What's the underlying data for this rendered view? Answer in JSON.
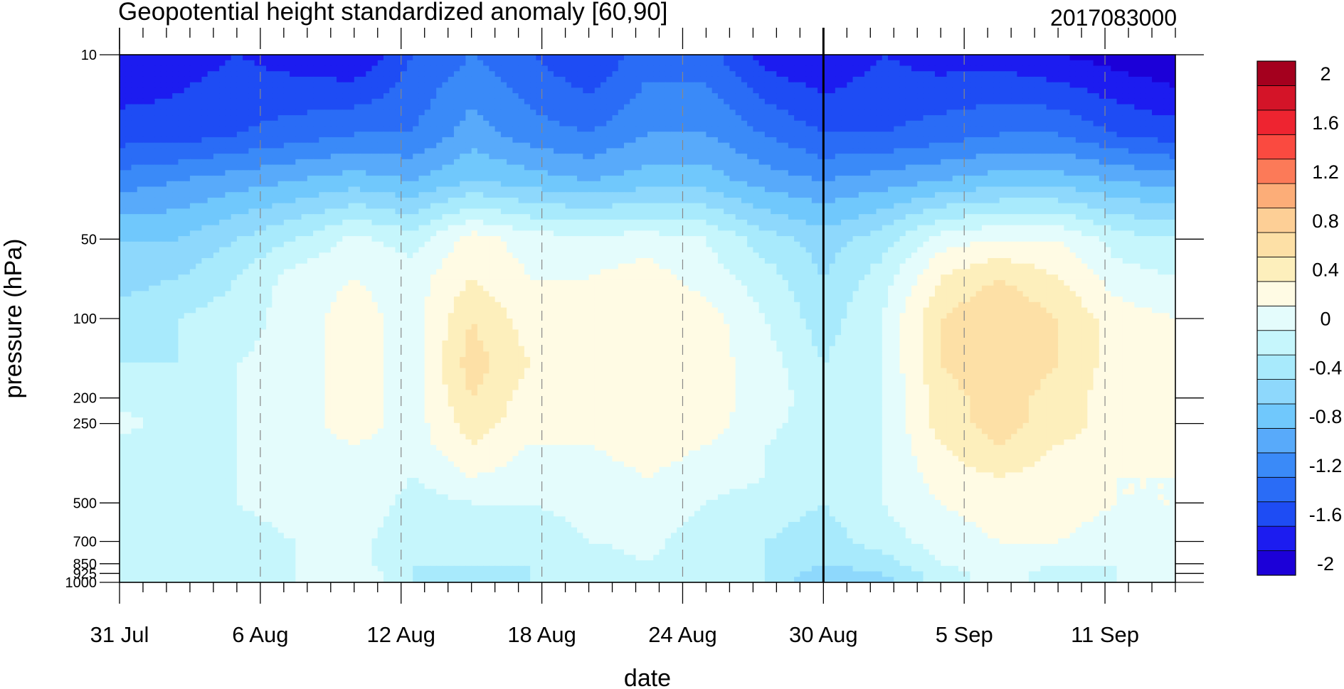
{
  "chart_data": {
    "type": "heatmap",
    "title": "Geopotential height standardized anomaly [60,90]",
    "run_label": "2017083000",
    "xlabel": "date",
    "ylabel": "pressure (hPa)",
    "x_ticks": [
      {
        "day": 0,
        "label": "31 Jul"
      },
      {
        "day": 6,
        "label": "6 Aug"
      },
      {
        "day": 12,
        "label": "12 Aug"
      },
      {
        "day": 18,
        "label": "18 Aug"
      },
      {
        "day": 24,
        "label": "24 Aug"
      },
      {
        "day": 30,
        "label": "30 Aug"
      },
      {
        "day": 36,
        "label": "5 Sep"
      },
      {
        "day": 42,
        "label": "11 Sep"
      }
    ],
    "x_range_days": [
      0,
      45
    ],
    "init_marker_day": 30,
    "y_scale": "log",
    "y_range_hpa": [
      1000,
      10
    ],
    "y_ticks": [
      {
        "p": 10,
        "label": "10"
      },
      {
        "p": 50,
        "label": "50"
      },
      {
        "p": 100,
        "label": "100"
      },
      {
        "p": 200,
        "label": "200"
      },
      {
        "p": 250,
        "label": "250"
      },
      {
        "p": 500,
        "label": "500"
      },
      {
        "p": 700,
        "label": "700"
      },
      {
        "p": 850,
        "label": "850"
      },
      {
        "p": 925,
        "label": "925"
      },
      {
        "p": 1000,
        "label": "1000"
      }
    ],
    "colorbar": {
      "levels": [
        -2,
        -1.8,
        -1.6,
        -1.4,
        -1.2,
        -1.0,
        -0.8,
        -0.6,
        -0.4,
        -0.2,
        0,
        0.2,
        0.4,
        0.6,
        0.8,
        1.0,
        1.2,
        1.4,
        1.6,
        1.8,
        2
      ],
      "labels": [
        "2",
        "1.6",
        "1.2",
        "0.8",
        "0.4",
        "0",
        "-0.4",
        "-0.8",
        "-1.2",
        "-1.6",
        "-2"
      ],
      "colors": [
        "#1c00d8",
        "#1c1cf0",
        "#1e4cf4",
        "#2a6cf6",
        "#3a8af8",
        "#58aafa",
        "#70c8fc",
        "#8ed8fc",
        "#a8eafc",
        "#c6f6fc",
        "#e4fcfc",
        "#fffbe4",
        "#fdefbc",
        "#fde0a6",
        "#fdcf96",
        "#fcad78",
        "#fc7a58",
        "#fa4a40",
        "#ee2430",
        "#d41428",
        "#a4001e"
      ]
    },
    "pressure_levels_hpa": [
      10,
      20,
      30,
      50,
      70,
      100,
      150,
      200,
      250,
      300,
      400,
      500,
      700,
      850,
      925,
      1000
    ],
    "day_samples": [
      0,
      2.5,
      5,
      7.5,
      10,
      12.5,
      15,
      17.5,
      20,
      22.5,
      25,
      27.5,
      30,
      32.5,
      35,
      37.5,
      40,
      42.5,
      45
    ],
    "anomaly_grid": [
      [
        -1.8,
        -1.7,
        -1.6,
        -1.7,
        -1.8,
        -1.4,
        -1.2,
        -1.4,
        -1.6,
        -1.3,
        -1.3,
        -1.7,
        -1.8,
        -1.6,
        -1.7,
        -1.7,
        -1.8,
        -1.9,
        -2.0
      ],
      [
        -1.5,
        -1.5,
        -1.4,
        -1.3,
        -1.2,
        -1.2,
        -0.9,
        -1.1,
        -1.2,
        -1.0,
        -1.0,
        -1.2,
        -1.4,
        -1.4,
        -1.3,
        -1.2,
        -1.2,
        -1.4,
        -1.5
      ],
      [
        -1.1,
        -1.0,
        -0.9,
        -0.8,
        -0.7,
        -0.8,
        -0.6,
        -0.7,
        -0.8,
        -0.7,
        -0.7,
        -0.9,
        -1.0,
        -0.9,
        -0.8,
        -0.7,
        -0.7,
        -0.8,
        -0.9
      ],
      [
        -0.6,
        -0.6,
        -0.4,
        -0.2,
        0.05,
        -0.1,
        0.3,
        0.1,
        0.05,
        0.1,
        0.0,
        -0.3,
        -0.5,
        -0.3,
        0.1,
        0.2,
        0.2,
        -0.1,
        -0.2
      ],
      [
        -0.5,
        -0.4,
        -0.2,
        0.1,
        0.2,
        0.1,
        0.4,
        0.2,
        0.2,
        0.3,
        0.1,
        -0.1,
        -0.4,
        -0.1,
        0.4,
        0.6,
        0.4,
        0.1,
        0.0
      ],
      [
        -0.3,
        -0.2,
        -0.1,
        0.1,
        0.3,
        0.1,
        0.6,
        0.3,
        0.2,
        0.4,
        0.3,
        0.0,
        -0.3,
        0.0,
        0.6,
        0.8,
        0.6,
        0.3,
        0.2
      ],
      [
        -0.2,
        -0.2,
        0.0,
        0.1,
        0.3,
        0.1,
        0.7,
        0.4,
        0.3,
        0.4,
        0.3,
        0.1,
        -0.2,
        0.0,
        0.6,
        0.8,
        0.6,
        0.3,
        0.2
      ],
      [
        -0.1,
        -0.1,
        0.0,
        0.1,
        0.3,
        0.1,
        0.6,
        0.3,
        0.2,
        0.4,
        0.3,
        0.1,
        -0.1,
        0.0,
        0.5,
        0.7,
        0.5,
        0.3,
        0.2
      ],
      [
        0.1,
        -0.1,
        0.0,
        0.1,
        0.3,
        0.1,
        0.5,
        0.3,
        0.2,
        0.4,
        0.3,
        0.05,
        -0.1,
        0.0,
        0.5,
        0.7,
        0.5,
        0.3,
        0.2
      ],
      [
        -0.1,
        -0.1,
        0.0,
        0.1,
        0.2,
        0.1,
        0.4,
        0.2,
        0.2,
        0.3,
        0.2,
        0.0,
        -0.1,
        0.0,
        0.4,
        0.6,
        0.4,
        0.3,
        0.2
      ],
      [
        -0.1,
        -0.1,
        0.0,
        0.1,
        0.2,
        0.0,
        0.2,
        0.1,
        0.1,
        0.2,
        0.1,
        0.0,
        -0.1,
        0.0,
        0.3,
        0.4,
        0.3,
        0.2,
        0.2
      ],
      [
        -0.1,
        -0.1,
        0.0,
        0.1,
        0.2,
        -0.1,
        0.0,
        0.0,
        0.05,
        0.1,
        0.0,
        -0.1,
        -0.2,
        0.0,
        0.2,
        0.3,
        0.3,
        0.2,
        0.2
      ],
      [
        -0.1,
        -0.1,
        -0.1,
        0.0,
        0.1,
        -0.2,
        -0.1,
        -0.1,
        0.0,
        0.05,
        -0.1,
        -0.2,
        -0.3,
        -0.1,
        0.1,
        0.2,
        0.2,
        0.1,
        0.1
      ],
      [
        -0.2,
        -0.1,
        -0.1,
        0.0,
        0.1,
        -0.2,
        -0.2,
        -0.2,
        -0.1,
        0.0,
        -0.1,
        -0.2,
        -0.4,
        -0.3,
        0.0,
        0.1,
        0.0,
        0.0,
        0.1
      ],
      [
        -0.2,
        -0.1,
        -0.1,
        0.0,
        0.2,
        -0.2,
        -0.3,
        -0.2,
        -0.1,
        0.0,
        -0.1,
        -0.2,
        -0.5,
        -0.4,
        -0.1,
        0.1,
        -0.1,
        0.0,
        0.1
      ],
      [
        -0.2,
        -0.1,
        -0.1,
        0.0,
        0.2,
        -0.2,
        -0.3,
        -0.2,
        -0.1,
        0.0,
        -0.1,
        -0.2,
        -0.6,
        -0.5,
        -0.1,
        0.1,
        -0.1,
        0.0,
        0.1
      ]
    ]
  }
}
